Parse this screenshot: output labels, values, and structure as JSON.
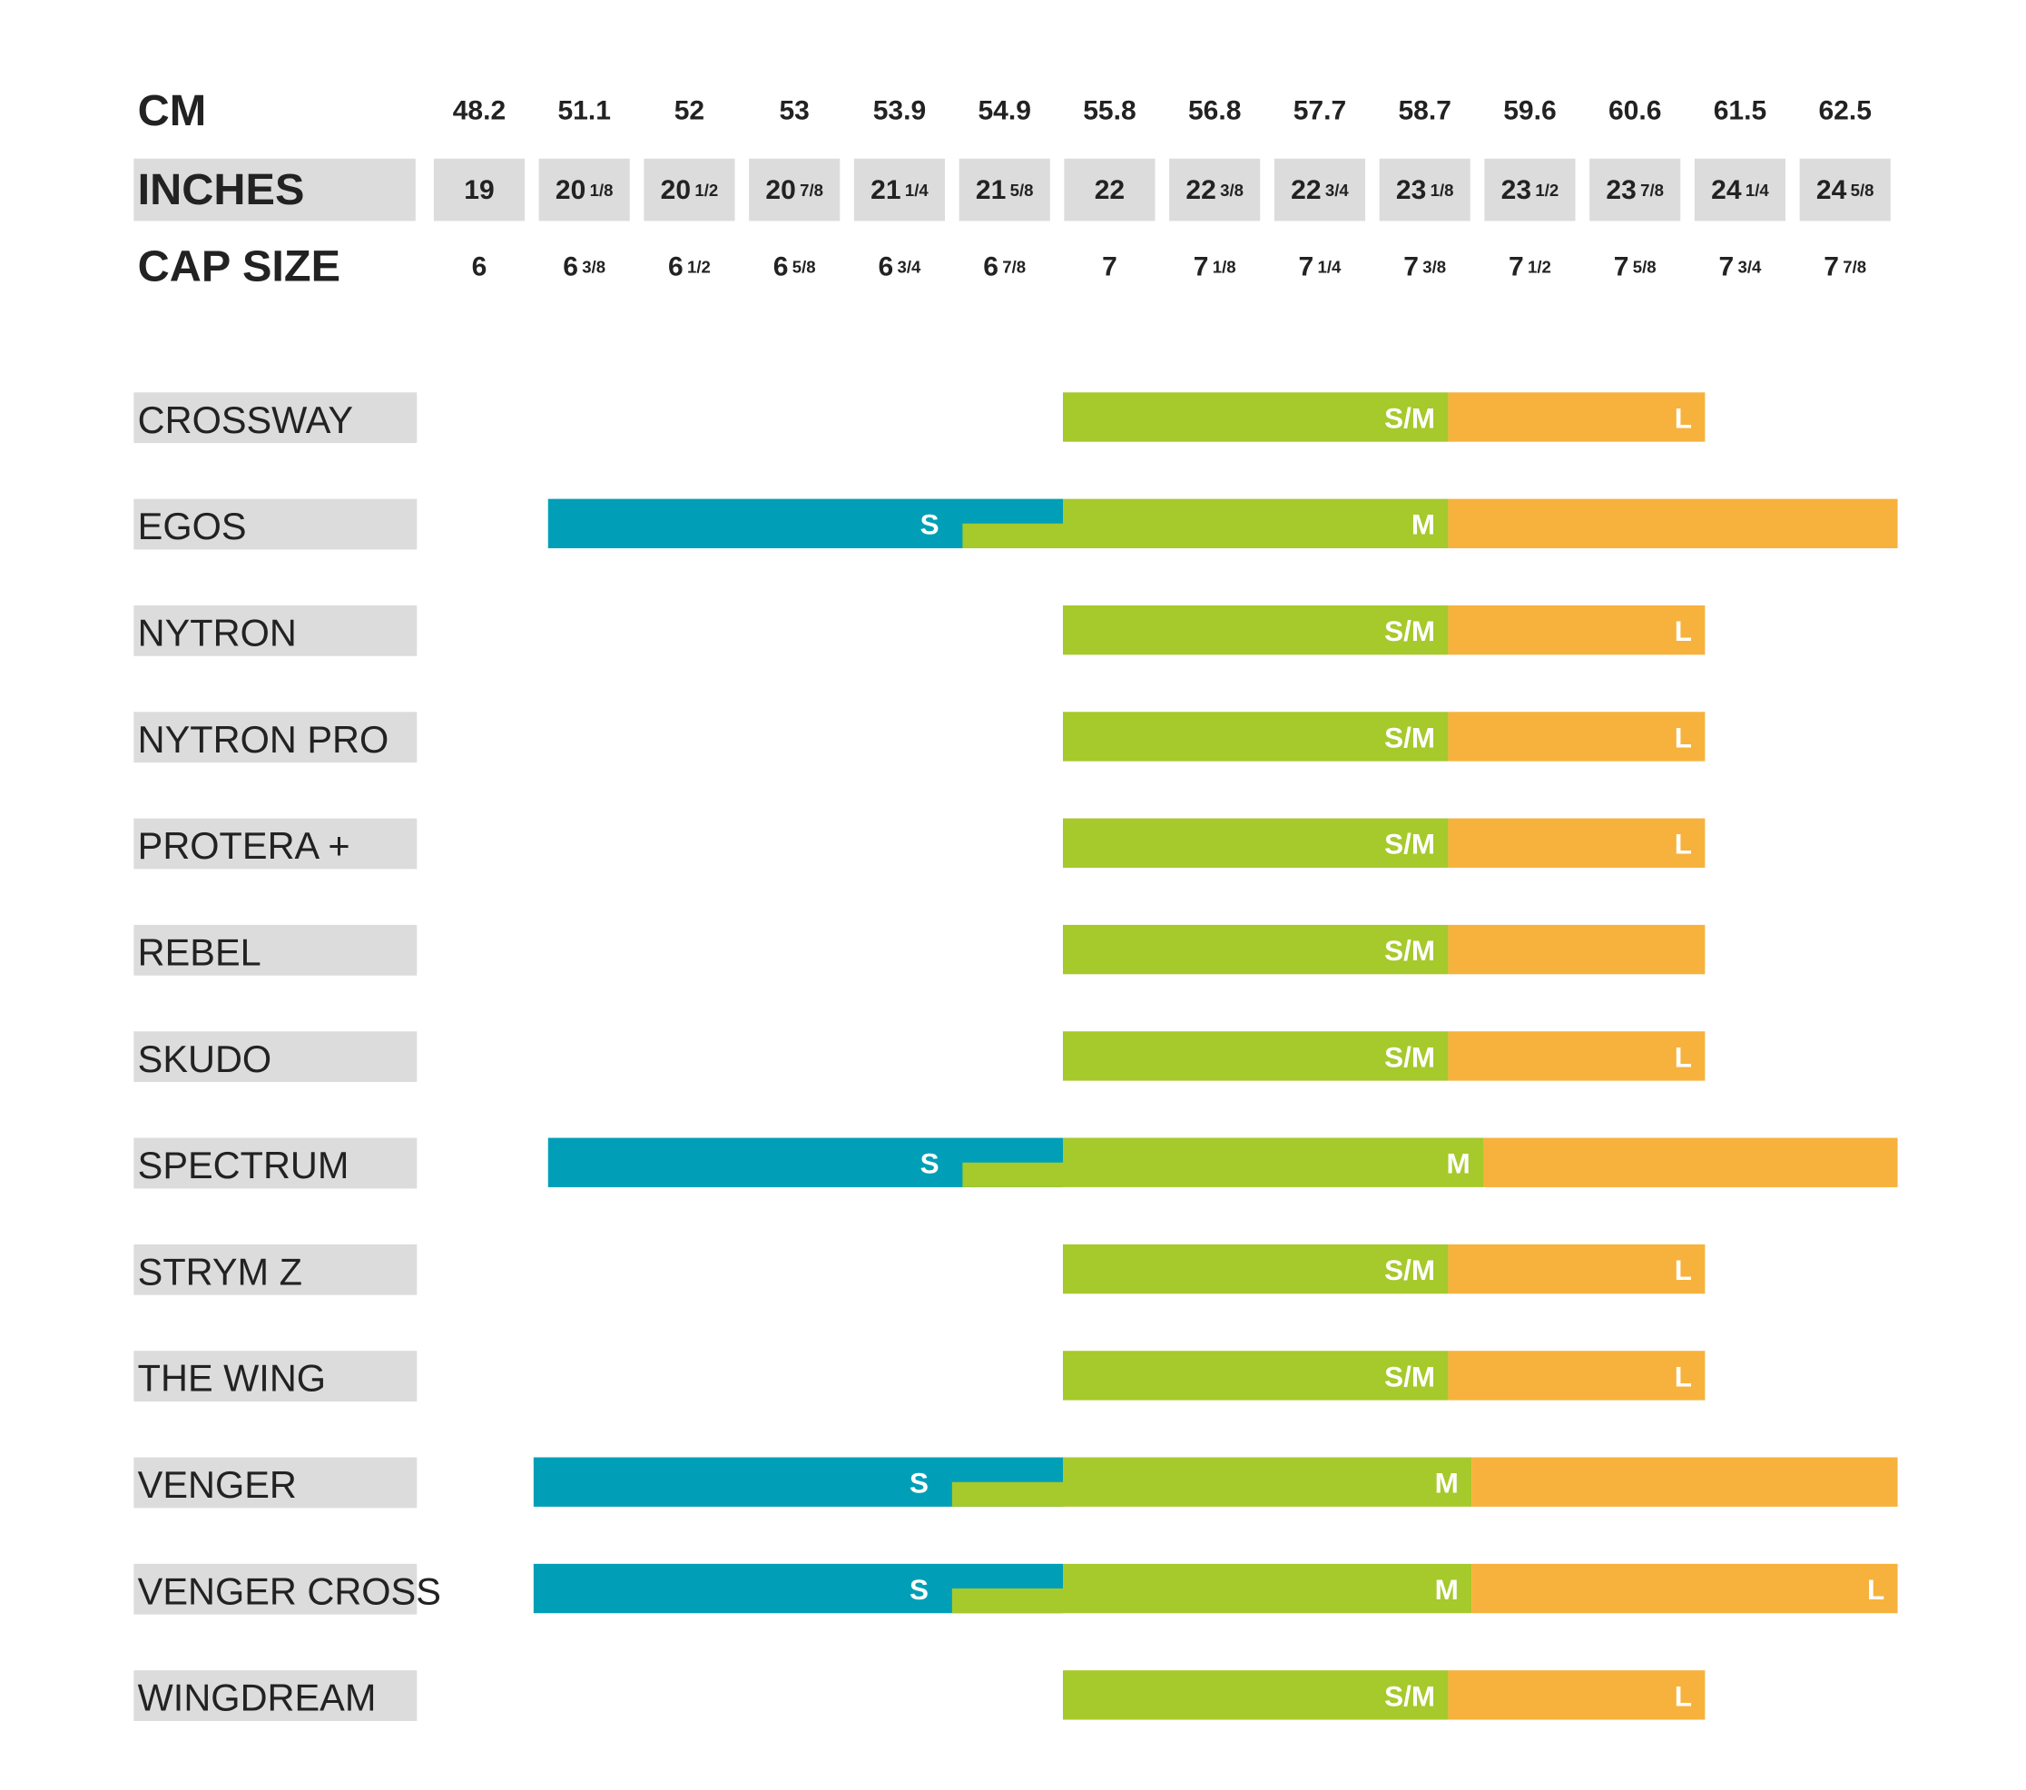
{
  "header": {
    "rows": [
      {
        "label": "CM",
        "values": [
          48.2,
          51.1,
          52,
          53,
          53.9,
          54.9,
          55.8,
          56.8,
          57.7,
          58.7,
          59.6,
          60.6,
          61.5,
          62.5
        ]
      },
      {
        "label": "INCHES",
        "values": [
          {
            "whole": "19"
          },
          {
            "whole": "20",
            "fraction": "1/8"
          },
          {
            "whole": "20",
            "fraction": "1/2"
          },
          {
            "whole": "20",
            "fraction": "7/8"
          },
          {
            "whole": "21",
            "fraction": "1/4"
          },
          {
            "whole": "21",
            "fraction": "5/8"
          },
          {
            "whole": "22"
          },
          {
            "whole": "22",
            "fraction": "3/8"
          },
          {
            "whole": "22",
            "fraction": "3/4"
          },
          {
            "whole": "23",
            "fraction": "1/8"
          },
          {
            "whole": "23",
            "fraction": "1/2"
          },
          {
            "whole": "23",
            "fraction": "7/8"
          },
          {
            "whole": "24",
            "fraction": "1/4"
          },
          {
            "whole": "24",
            "fraction": "5/8"
          }
        ]
      },
      {
        "label": "CAP SIZE",
        "values": [
          {
            "whole": "6"
          },
          {
            "whole": "6",
            "fraction": "3/8"
          },
          {
            "whole": "6",
            "fraction": "1/2"
          },
          {
            "whole": "6",
            "fraction": "5/8"
          },
          {
            "whole": "6",
            "fraction": "3/4"
          },
          {
            "whole": "6",
            "fraction": "7/8"
          },
          {
            "whole": "7"
          },
          {
            "whole": "7",
            "fraction": "1/8"
          },
          {
            "whole": "7",
            "fraction": "1/4"
          },
          {
            "whole": "7",
            "fraction": "3/8"
          },
          {
            "whole": "7",
            "fraction": "1/2"
          },
          {
            "whole": "7",
            "fraction": "5/8"
          },
          {
            "whole": "7",
            "fraction": "3/4"
          },
          {
            "whole": "7",
            "fraction": "7/8"
          }
        ]
      }
    ]
  },
  "products": [
    {
      "name": "CROSSWAY",
      "segments": [
        {
          "label": "S/M",
          "from": 55.4,
          "to": 58.9,
          "color": "#a6c92b"
        },
        {
          "label": "L",
          "from": 58.9,
          "to": 61.2,
          "color": "#f6b23c"
        }
      ]
    },
    {
      "name": "EGOS",
      "segments": [
        {
          "label": "S",
          "from": 50.1,
          "to": 55.4,
          "color": "#019fb7"
        },
        {
          "label": "M",
          "from": 54.5,
          "to": 58.9,
          "color": "#a6c92b"
        },
        {
          "label": null,
          "from": 58.9,
          "to": 63.0,
          "color": "#f6b23c"
        }
      ]
    },
    {
      "name": "NYTRON",
      "segments": [
        {
          "label": "S/M",
          "from": 55.4,
          "to": 58.9,
          "color": "#a6c92b"
        },
        {
          "label": "L",
          "from": 58.9,
          "to": 61.2,
          "color": "#f6b23c"
        }
      ]
    },
    {
      "name": "NYTRON PRO",
      "segments": [
        {
          "label": "S/M",
          "from": 55.4,
          "to": 58.9,
          "color": "#a6c92b"
        },
        {
          "label": "L",
          "from": 58.9,
          "to": 61.2,
          "color": "#f6b23c"
        }
      ]
    },
    {
      "name": "PROTERA +",
      "segments": [
        {
          "label": "S/M",
          "from": 55.4,
          "to": 58.9,
          "color": "#a6c92b"
        },
        {
          "label": "L",
          "from": 58.9,
          "to": 61.2,
          "color": "#f6b23c"
        }
      ]
    },
    {
      "name": "REBEL",
      "segments": [
        {
          "label": "S/M",
          "from": 55.4,
          "to": 58.9,
          "color": "#a6c92b"
        },
        {
          "label": null,
          "from": 58.9,
          "to": 61.2,
          "color": "#f6b23c"
        }
      ]
    },
    {
      "name": "SKUDO",
      "segments": [
        {
          "label": "S/M",
          "from": 55.4,
          "to": 58.9,
          "color": "#a6c92b"
        },
        {
          "label": "L",
          "from": 58.9,
          "to": 61.2,
          "color": "#f6b23c"
        }
      ]
    },
    {
      "name": "SPECTRUM",
      "segments": [
        {
          "label": "S",
          "from": 50.1,
          "to": 55.4,
          "color": "#019fb7"
        },
        {
          "label": "M",
          "from": 54.5,
          "to": 59.2,
          "color": "#a6c92b"
        },
        {
          "label": null,
          "from": 59.2,
          "to": 63.0,
          "color": "#f6b23c"
        }
      ]
    },
    {
      "name": "STRYM Z",
      "segments": [
        {
          "label": "S/M",
          "from": 55.4,
          "to": 58.9,
          "color": "#a6c92b"
        },
        {
          "label": "L",
          "from": 58.9,
          "to": 61.2,
          "color": "#f6b23c"
        }
      ]
    },
    {
      "name": "THE WING",
      "segments": [
        {
          "label": "S/M",
          "from": 55.4,
          "to": 58.9,
          "color": "#a6c92b"
        },
        {
          "label": "L",
          "from": 58.9,
          "to": 61.2,
          "color": "#f6b23c"
        }
      ]
    },
    {
      "name": "VENGER",
      "segments": [
        {
          "label": "S",
          "from": 49.7,
          "to": 55.4,
          "color": "#019fb7"
        },
        {
          "label": "M",
          "from": 54.4,
          "to": 59.1,
          "color": "#a6c92b"
        },
        {
          "label": null,
          "from": 59.1,
          "to": 63.0,
          "color": "#f6b23c"
        }
      ]
    },
    {
      "name": "VENGER CROSS",
      "segments": [
        {
          "label": "S",
          "from": 49.7,
          "to": 55.4,
          "color": "#019fb7"
        },
        {
          "label": "M",
          "from": 54.4,
          "to": 59.1,
          "color": "#a6c92b"
        },
        {
          "label": "L",
          "from": 59.1,
          "to": 63.0,
          "color": "#f6b23c"
        }
      ]
    },
    {
      "name": "WINGDREAM",
      "segments": [
        {
          "label": "S/M",
          "from": 55.4,
          "to": 58.9,
          "color": "#a6c92b"
        },
        {
          "label": "L",
          "from": 58.9,
          "to": 61.2,
          "color": "#f6b23c"
        }
      ]
    }
  ]
}
